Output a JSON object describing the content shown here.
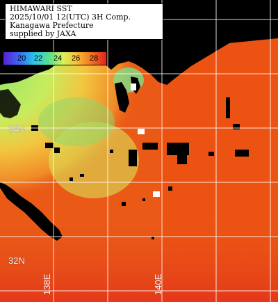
{
  "title": {
    "lines": [
      "HIMAWARI SST",
      "2025/10/01 12(UTC) 3H Comp.",
      "Kanagawa Prefecture",
      "supplied by JAXA"
    ]
  },
  "legend": {
    "ticks": [
      "20",
      "22",
      "24",
      "26",
      "28"
    ],
    "colors": [
      "#5a1fd8",
      "#29c7e8",
      "#5de08a",
      "#d9ef5a",
      "#f7c33b",
      "#f27a22",
      "#e0241a"
    ]
  },
  "grid": {
    "lat_labels": [
      "34N",
      "32N"
    ],
    "lon_labels": [
      "138E",
      "140E"
    ]
  },
  "colors": {
    "land": "#000000",
    "grid": "#ffffff",
    "warm_sea": "#e8420c",
    "cool_sea": "#b8e86a"
  }
}
